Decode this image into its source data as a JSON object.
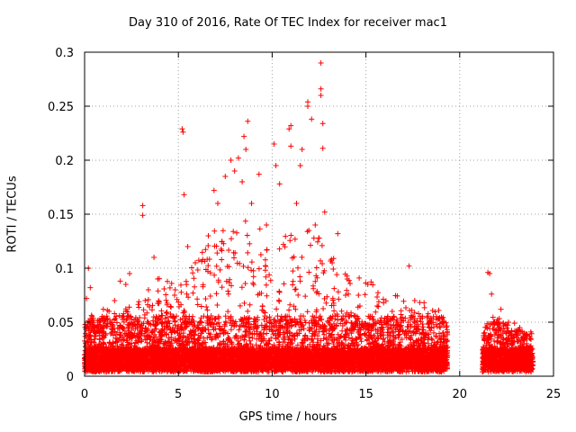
{
  "chart_data": {
    "type": "scatter",
    "title": "Day 310 of 2016, Rate Of TEC Index for receiver mac1",
    "xlabel": "GPS time / hours",
    "ylabel": "ROTI / TECUs",
    "xlim": [
      0,
      25
    ],
    "ylim": [
      0,
      0.3
    ],
    "xticks": [
      0,
      5,
      10,
      15,
      20,
      25
    ],
    "yticks": [
      0,
      0.05,
      0.1,
      0.15,
      0.2,
      0.25,
      0.3
    ],
    "xtick_labels": [
      "0",
      "5",
      "10",
      "15",
      "20",
      "25"
    ],
    "ytick_labels": [
      "0",
      "0.05",
      "0.1",
      "0.15",
      "0.2",
      "0.25",
      "0.3"
    ],
    "grid": true,
    "marker": "+",
    "color": "#ff0000",
    "points": [
      [
        0.1,
        0.072
      ],
      [
        0.2,
        0.1
      ],
      [
        0.3,
        0.082
      ],
      [
        0.5,
        0.045
      ],
      [
        0.8,
        0.05
      ],
      [
        1.0,
        0.062
      ],
      [
        1.3,
        0.06
      ],
      [
        1.6,
        0.07
      ],
      [
        1.9,
        0.088
      ],
      [
        2.2,
        0.085
      ],
      [
        2.4,
        0.095
      ],
      [
        2.6,
        0.05
      ],
      [
        3.1,
        0.158
      ],
      [
        3.1,
        0.149
      ],
      [
        3.4,
        0.08
      ],
      [
        3.7,
        0.11
      ],
      [
        3.9,
        0.09
      ],
      [
        4.4,
        0.066
      ],
      [
        4.8,
        0.075
      ],
      [
        5.2,
        0.229
      ],
      [
        5.25,
        0.226
      ],
      [
        5.3,
        0.168
      ],
      [
        5.5,
        0.12
      ],
      [
        5.9,
        0.105
      ],
      [
        6.3,
        0.108
      ],
      [
        6.6,
        0.13
      ],
      [
        6.9,
        0.172
      ],
      [
        7.1,
        0.16
      ],
      [
        7.5,
        0.185
      ],
      [
        7.8,
        0.2
      ],
      [
        8.0,
        0.19
      ],
      [
        8.2,
        0.202
      ],
      [
        8.4,
        0.18
      ],
      [
        8.5,
        0.222
      ],
      [
        8.6,
        0.21
      ],
      [
        8.7,
        0.236
      ],
      [
        8.9,
        0.16
      ],
      [
        9.3,
        0.187
      ],
      [
        9.7,
        0.14
      ],
      [
        10.1,
        0.215
      ],
      [
        10.2,
        0.195
      ],
      [
        10.4,
        0.178
      ],
      [
        10.6,
        0.122
      ],
      [
        10.9,
        0.229
      ],
      [
        11.0,
        0.232
      ],
      [
        11.0,
        0.213
      ],
      [
        11.3,
        0.16
      ],
      [
        11.5,
        0.195
      ],
      [
        11.6,
        0.21
      ],
      [
        11.9,
        0.254
      ],
      [
        11.9,
        0.25
      ],
      [
        12.1,
        0.238
      ],
      [
        12.3,
        0.14
      ],
      [
        12.5,
        0.128
      ],
      [
        12.6,
        0.29
      ],
      [
        12.6,
        0.266
      ],
      [
        12.6,
        0.26
      ],
      [
        12.7,
        0.234
      ],
      [
        12.7,
        0.211
      ],
      [
        12.8,
        0.152
      ],
      [
        13.2,
        0.105
      ],
      [
        13.5,
        0.132
      ],
      [
        14.0,
        0.09
      ],
      [
        14.6,
        0.075
      ],
      [
        15.1,
        0.085
      ],
      [
        15.6,
        0.065
      ],
      [
        16.4,
        0.06
      ],
      [
        17.3,
        0.102
      ],
      [
        17.6,
        0.07
      ],
      [
        18.1,
        0.068
      ],
      [
        18.6,
        0.055
      ],
      [
        19.1,
        0.05
      ],
      [
        21.5,
        0.096
      ],
      [
        21.6,
        0.095
      ],
      [
        21.7,
        0.076
      ],
      [
        22.2,
        0.062
      ],
      [
        22.6,
        0.05
      ],
      [
        23.2,
        0.045
      ],
      [
        23.6,
        0.035
      ]
    ],
    "dense_band": {
      "note": "dense cloud of ROTI samples along the baseline",
      "segments": [
        {
          "x": [
            0.0,
            19.35
          ],
          "y_range": [
            0.004,
            0.055
          ]
        },
        {
          "x": [
            21.2,
            23.9
          ],
          "y_range": [
            0.004,
            0.045
          ]
        }
      ],
      "envelope": [
        [
          0.0,
          0.045
        ],
        [
          1.0,
          0.05
        ],
        [
          2.0,
          0.055
        ],
        [
          3.0,
          0.06
        ],
        [
          4.0,
          0.085
        ],
        [
          5.0,
          0.075
        ],
        [
          6.0,
          0.1
        ],
        [
          7.0,
          0.13
        ],
        [
          8.0,
          0.14
        ],
        [
          9.0,
          0.13
        ],
        [
          10.0,
          0.12
        ],
        [
          11.0,
          0.13
        ],
        [
          12.0,
          0.13
        ],
        [
          13.0,
          0.11
        ],
        [
          14.0,
          0.085
        ],
        [
          15.0,
          0.085
        ],
        [
          16.0,
          0.06
        ],
        [
          17.0,
          0.07
        ],
        [
          18.0,
          0.06
        ],
        [
          19.0,
          0.05
        ],
        [
          19.35,
          0.04
        ],
        [
          21.2,
          0.03
        ],
        [
          21.6,
          0.05
        ],
        [
          22.0,
          0.045
        ],
        [
          23.0,
          0.04
        ],
        [
          23.9,
          0.03
        ]
      ]
    }
  }
}
